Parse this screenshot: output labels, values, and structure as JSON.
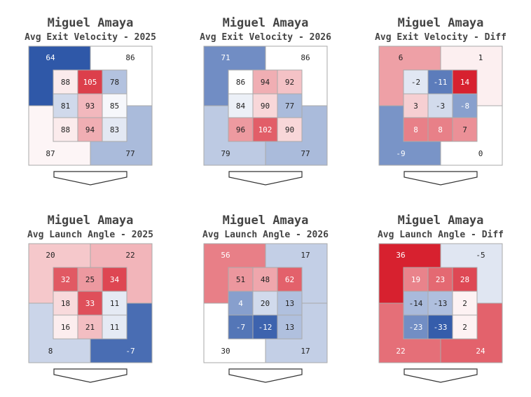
{
  "charts": [
    {
      "player": "Miguel Amaya",
      "subtitle": "Avg Exit Velocity - 2025",
      "outer": [
        64,
        86,
        87,
        77
      ],
      "inner": [
        [
          88,
          105,
          78
        ],
        [
          81,
          93,
          85
        ],
        [
          88,
          94,
          83
        ]
      ],
      "scale": {
        "type": "seq",
        "center": 86,
        "span": 22
      }
    },
    {
      "player": "Miguel Amaya",
      "subtitle": "Avg Exit Velocity - 2026",
      "outer": [
        71,
        86,
        79,
        77
      ],
      "inner": [
        [
          86,
          94,
          92
        ],
        [
          84,
          90,
          77
        ],
        [
          96,
          102,
          90
        ]
      ],
      "scale": {
        "type": "seq",
        "center": 86,
        "span": 22
      }
    },
    {
      "player": "Miguel Amaya",
      "subtitle": "Avg Exit Velocity - Diff",
      "outer": [
        6,
        1,
        -9,
        0
      ],
      "inner": [
        [
          -2,
          -11,
          14
        ],
        [
          3,
          -3,
          -8
        ],
        [
          8,
          8,
          7
        ]
      ],
      "scale": {
        "type": "div",
        "center": 0,
        "span": 14
      }
    },
    {
      "player": "Miguel Amaya",
      "subtitle": "Avg Launch Angle - 2025",
      "outer": [
        20,
        22,
        8,
        -7
      ],
      "inner": [
        [
          32,
          25,
          34
        ],
        [
          18,
          33,
          11
        ],
        [
          16,
          21,
          11
        ]
      ],
      "scale": {
        "type": "la",
        "center": 14,
        "span": 24
      }
    },
    {
      "player": "Miguel Amaya",
      "subtitle": "Avg Launch Angle - 2026",
      "outer": [
        56,
        17,
        30,
        17
      ],
      "inner": [
        [
          51,
          48,
          62
        ],
        [
          4,
          20,
          13
        ],
        [
          -7,
          -12,
          13
        ]
      ],
      "scale": {
        "type": "la2",
        "center": 30,
        "span": 45
      }
    },
    {
      "player": "Miguel Amaya",
      "subtitle": "Avg Launch Angle - Diff",
      "outer": [
        36,
        -5,
        22,
        24
      ],
      "inner": [
        [
          19,
          23,
          28
        ],
        [
          -14,
          -13,
          2
        ],
        [
          -23,
          -33,
          2
        ]
      ],
      "scale": {
        "type": "div",
        "center": 0,
        "span": 34
      }
    }
  ],
  "colors": {
    "red": "#d7212f",
    "blue": "#2f58a8",
    "white": "#ffffff",
    "border": "#aaaaaa"
  }
}
